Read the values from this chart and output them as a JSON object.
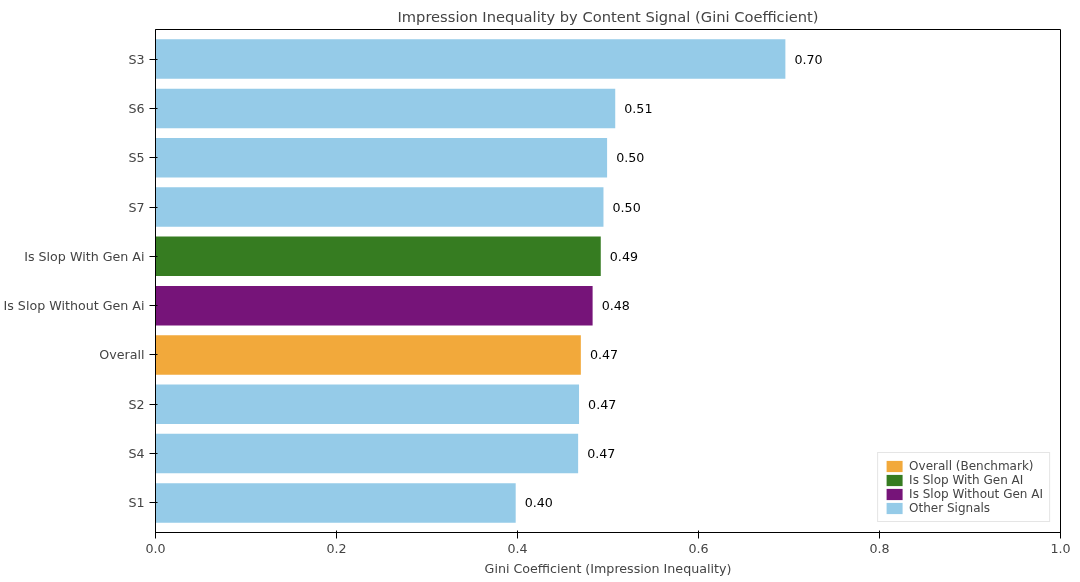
{
  "chart_data": {
    "type": "bar",
    "orientation": "horizontal",
    "title": "Impression Inequality by Content Signal (Gini Coefficient)",
    "xlabel": "Gini Coefficient (Impression Inequality)",
    "categories": [
      "S3",
      "S6",
      "S5",
      "S7",
      "Is Slop With Gen Ai",
      "Is Slop Without Gen Ai",
      "Overall",
      "S2",
      "S4",
      "S1"
    ],
    "series": [
      {
        "name": "Overall (Benchmark)",
        "color": "#f2a93b",
        "values": [
          null,
          null,
          null,
          null,
          null,
          null,
          0.47,
          null,
          null,
          null
        ],
        "value_labels": [
          null,
          null,
          null,
          null,
          null,
          null,
          "0.47",
          null,
          null,
          null
        ]
      },
      {
        "name": "Is Slop With Gen AI",
        "color": "#367c21",
        "values": [
          null,
          null,
          null,
          null,
          0.492,
          null,
          null,
          null,
          null,
          null
        ],
        "value_labels": [
          null,
          null,
          null,
          null,
          "0.49",
          null,
          null,
          null,
          null,
          null
        ]
      },
      {
        "name": "Is Slop Without Gen AI",
        "color": "#761479",
        "values": [
          null,
          null,
          null,
          null,
          null,
          0.483,
          null,
          null,
          null,
          null
        ],
        "value_labels": [
          null,
          null,
          null,
          null,
          null,
          "0.48",
          null,
          null,
          null,
          null
        ]
      },
      {
        "name": "Other Signals",
        "color": "#95cbe8",
        "values": [
          0.696,
          0.508,
          0.499,
          0.495,
          null,
          null,
          null,
          0.468,
          0.467,
          0.398
        ],
        "value_labels": [
          "0.70",
          "0.51",
          "0.50",
          "0.50",
          null,
          null,
          null,
          "0.47",
          "0.47",
          "0.40"
        ]
      }
    ],
    "xlim": [
      0,
      1
    ],
    "xticks": [
      {
        "value": 0,
        "label": "0.0"
      },
      {
        "value": 0.2,
        "label": "0.2"
      },
      {
        "value": 0.4,
        "label": "0.4"
      },
      {
        "value": 0.6,
        "label": "0.6"
      },
      {
        "value": 0.8,
        "label": "0.8"
      },
      {
        "value": 1,
        "label": "1.0"
      }
    ],
    "grid": false,
    "legend": "bottom right"
  }
}
